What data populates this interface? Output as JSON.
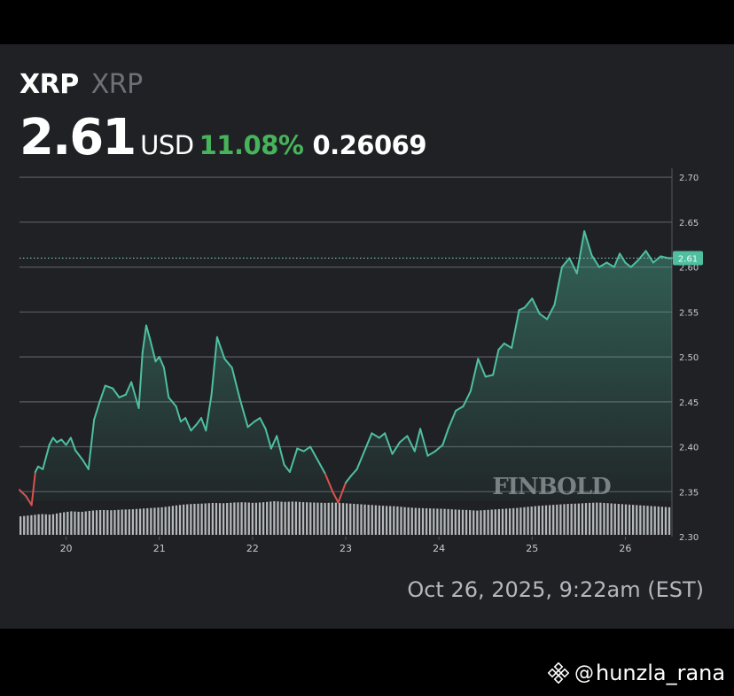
{
  "header": {
    "symbol": "XRP",
    "name": "XRP",
    "price": "2.61",
    "currency": "USD",
    "change_pct": "11.08%",
    "change_abs": "0.26069"
  },
  "timestamp": "Oct 26, 2025, 9:22am (EST)",
  "watermark": "FINBOLD",
  "footer": {
    "at": "@",
    "handle": "hunzla_rana"
  },
  "colors": {
    "background": "#1f2124",
    "up": "#4fbf9f",
    "down": "#d9534f",
    "change_green": "#47b35b",
    "grid": "#54575c"
  },
  "chart_data": {
    "type": "line",
    "title": "",
    "xlabel": "",
    "ylabel": "",
    "x_ticks": [
      "20",
      "21",
      "22",
      "23",
      "24",
      "25",
      "26"
    ],
    "x_tick_positions": [
      0.5,
      1.5,
      2.5,
      3.5,
      4.5,
      5.5,
      6.5
    ],
    "y_ticks": [
      "2.70",
      "2.65",
      "2.60",
      "2.55",
      "2.50",
      "2.45",
      "2.40",
      "2.35",
      "2.30"
    ],
    "ylim": [
      2.3,
      2.71
    ],
    "xlim": [
      0,
      7.0
    ],
    "last_price_label": "2.61",
    "last_price": 2.61,
    "grid": true,
    "series": [
      {
        "x": [
          0.0,
          0.07,
          0.13,
          0.17,
          0.2,
          0.25,
          0.32,
          0.36,
          0.4,
          0.45,
          0.5,
          0.55,
          0.6,
          0.68,
          0.74,
          0.8,
          0.86,
          0.92,
          1.0,
          1.07,
          1.14,
          1.2,
          1.28,
          1.32,
          1.36,
          1.4,
          1.46,
          1.5,
          1.55,
          1.6,
          1.68,
          1.73,
          1.78,
          1.84,
          1.9,
          1.95,
          2.0,
          2.06,
          2.12,
          2.2,
          2.28,
          2.36,
          2.45,
          2.52,
          2.58,
          2.64,
          2.7,
          2.76,
          2.84,
          2.9,
          2.98,
          3.05,
          3.12,
          3.2,
          3.28,
          3.36,
          3.42,
          3.5,
          3.56,
          3.62,
          3.7,
          3.78,
          3.86,
          3.92,
          4.0,
          4.08,
          4.16,
          4.24,
          4.3,
          4.38,
          4.46,
          4.54,
          4.6,
          4.68,
          4.76,
          4.84,
          4.92,
          5.0,
          5.08,
          5.14,
          5.2,
          5.28,
          5.36,
          5.42,
          5.5,
          5.58,
          5.66,
          5.74,
          5.82,
          5.9,
          5.98,
          6.06,
          6.14,
          6.22,
          6.3,
          6.38,
          6.44,
          6.5,
          6.56,
          6.64,
          6.72,
          6.8,
          6.88,
          6.96,
          7.0
        ],
        "y": [
          2.352,
          2.345,
          2.335,
          2.372,
          2.378,
          2.375,
          2.402,
          2.41,
          2.405,
          2.408,
          2.402,
          2.41,
          2.396,
          2.385,
          2.375,
          2.43,
          2.45,
          2.468,
          2.465,
          2.455,
          2.458,
          2.472,
          2.443,
          2.505,
          2.535,
          2.52,
          2.495,
          2.5,
          2.488,
          2.455,
          2.445,
          2.428,
          2.432,
          2.418,
          2.425,
          2.432,
          2.418,
          2.458,
          2.522,
          2.498,
          2.488,
          2.455,
          2.422,
          2.428,
          2.432,
          2.42,
          2.398,
          2.412,
          2.38,
          2.372,
          2.398,
          2.395,
          2.4,
          2.385,
          2.37,
          2.35,
          2.338,
          2.36,
          2.368,
          2.375,
          2.395,
          2.415,
          2.41,
          2.415,
          2.392,
          2.405,
          2.412,
          2.395,
          2.42,
          2.39,
          2.395,
          2.402,
          2.42,
          2.44,
          2.445,
          2.462,
          2.498,
          2.478,
          2.48,
          2.508,
          2.515,
          2.51,
          2.552,
          2.555,
          2.565,
          2.548,
          2.542,
          2.558,
          2.6,
          2.61,
          2.593,
          2.64,
          2.613,
          2.6,
          2.605,
          2.6,
          2.615,
          2.605,
          2.6,
          2.608,
          2.618,
          2.605,
          2.612,
          2.61,
          2.61
        ]
      }
    ],
    "volume": [
      0.55,
      0.58,
      0.62,
      0.6,
      0.66,
      0.7,
      0.68,
      0.72,
      0.74,
      0.73,
      0.75,
      0.76,
      0.78,
      0.8,
      0.82,
      0.86,
      0.9,
      0.92,
      0.93,
      0.95,
      0.94,
      0.96,
      0.97,
      0.95,
      0.97,
      1.0,
      0.98,
      0.99,
      0.97,
      0.96,
      0.95,
      0.96,
      0.94,
      0.92,
      0.9,
      0.88,
      0.86,
      0.85,
      0.82,
      0.8,
      0.79,
      0.78,
      0.77,
      0.75,
      0.74,
      0.72,
      0.74,
      0.76,
      0.78,
      0.8,
      0.83,
      0.86,
      0.88,
      0.9,
      0.92,
      0.93,
      0.95,
      0.96,
      0.94,
      0.92,
      0.9,
      0.88,
      0.86,
      0.84,
      0.82
    ]
  }
}
